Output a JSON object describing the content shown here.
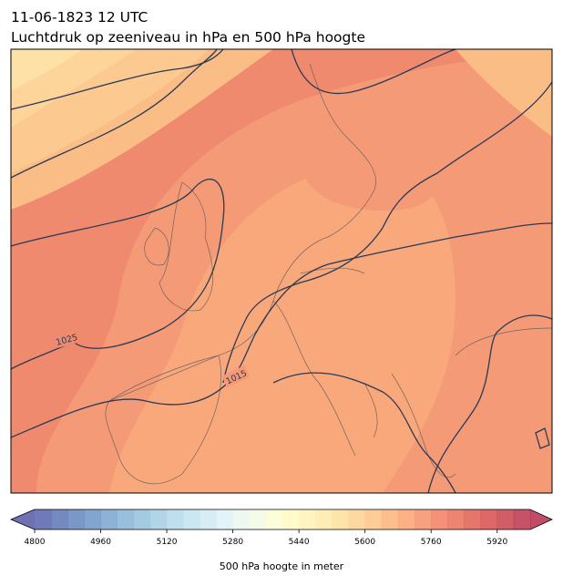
{
  "header": {
    "title_line1": "11-06-1823 12 UTC",
    "title_line2": "Luchtdruk op zeeniveau in hPa en 500 hPa hoogte"
  },
  "map": {
    "isobar_labels": [
      1025,
      1015
    ]
  },
  "colorbar": {
    "label": "500 hPa hoogte in meter",
    "min": 4800,
    "max": 6000,
    "step": 40,
    "ticks": [
      4800,
      4960,
      5120,
      5280,
      5440,
      5600,
      5760,
      5920
    ],
    "colors": [
      "#313695",
      "#4575b4",
      "#74add1",
      "#abd9e9",
      "#e0f3f8",
      "#ffffbf",
      "#fee090",
      "#fdae61",
      "#f46d43",
      "#d73027",
      "#a50026"
    ],
    "opacity": 0.7
  }
}
